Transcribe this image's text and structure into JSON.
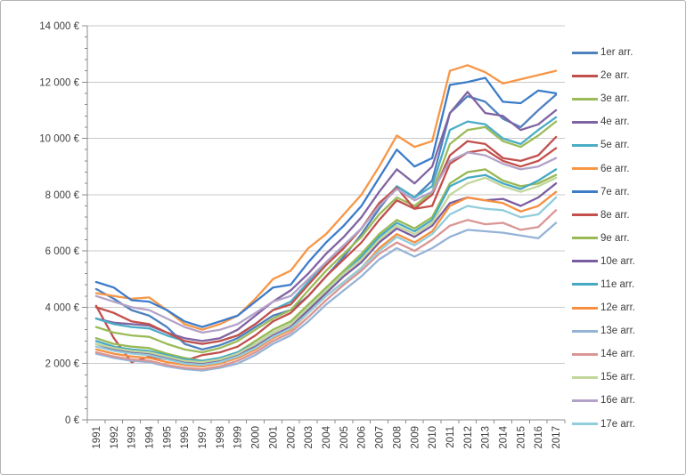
{
  "chart_data": {
    "type": "line",
    "title": "",
    "xlabel": "",
    "ylabel": "",
    "grid": true,
    "legend_position": "right",
    "x_tick_labels": [
      "1991",
      "1992",
      "1993",
      "1994",
      "1995",
      "1996",
      "1997",
      "1998",
      "1999",
      "2000",
      "2001",
      "2002",
      "2003",
      "2004",
      "2005",
      "2006",
      "2007",
      "2008",
      "2009",
      "2010",
      "2011",
      "2012",
      "2013",
      "2014",
      "2015",
      "2016",
      "2017"
    ],
    "y_axis": {
      "min": 0,
      "max": 14000,
      "major_step": 2000,
      "minor_step": 400,
      "tick_labels": [
        "0 €",
        "2 000 €",
        "4 000 €",
        "6 000 €",
        "8 000 €",
        "10 000 €",
        "12 000 €",
        "14 000 €"
      ]
    },
    "series": [
      {
        "name": "1er arr.",
        "color": "#4F81BD",
        "values": [
          4650,
          4300,
          3900,
          3700,
          3300,
          2700,
          2500,
          2650,
          2900,
          3300,
          3700,
          3900,
          4400,
          5100,
          5800,
          6600,
          7500,
          8300,
          7900,
          8500,
          10900,
          11500,
          11300,
          10700,
          10400,
          11000,
          11550
        ]
      },
      {
        "name": "2e arr.",
        "color": "#C0504D",
        "values": [
          4050,
          2900,
          2050,
          2250,
          2150,
          2100,
          2300,
          2400,
          2600,
          3000,
          3500,
          3800,
          4400,
          5100,
          5700,
          6300,
          7100,
          7800,
          7500,
          8000,
          9400,
          9900,
          9800,
          9300,
          9200,
          9400,
          10050
        ]
      },
      {
        "name": "3e arr.",
        "color": "#9BBB59",
        "values": [
          3300,
          3100,
          3000,
          2950,
          2700,
          2500,
          2400,
          2550,
          2800,
          3200,
          3600,
          3900,
          4600,
          5300,
          5900,
          6500,
          7300,
          7900,
          7600,
          8100,
          9800,
          10300,
          10400,
          9900,
          9700,
          10100,
          10600
        ]
      },
      {
        "name": "4e arr.",
        "color": "#8064A2",
        "values": [
          3600,
          3450,
          3400,
          3350,
          3100,
          2900,
          2800,
          2900,
          3200,
          3700,
          4200,
          4600,
          5200,
          5900,
          6500,
          7200,
          8100,
          8900,
          8400,
          9000,
          10900,
          11650,
          10900,
          10800,
          10300,
          10500,
          11000
        ]
      },
      {
        "name": "5e arr.",
        "color": "#4BACC6",
        "values": [
          3600,
          3400,
          3300,
          3250,
          3000,
          2800,
          2700,
          2800,
          3000,
          3400,
          3900,
          4200,
          4900,
          5600,
          6200,
          6800,
          7600,
          8300,
          7900,
          8300,
          10300,
          10600,
          10500,
          10000,
          9800,
          10300,
          10750
        ]
      },
      {
        "name": "6e arr.",
        "color": "#F79646",
        "values": [
          4500,
          4400,
          4300,
          4350,
          3900,
          3400,
          3200,
          3400,
          3700,
          4300,
          5000,
          5300,
          6100,
          6600,
          7300,
          8000,
          9000,
          10100,
          9700,
          9900,
          12400,
          12600,
          12350,
          11950,
          12100,
          12250,
          12400
        ]
      },
      {
        "name": "7e arr.",
        "color": "#3D7CC9",
        "values": [
          4900,
          4700,
          4250,
          4200,
          3900,
          3500,
          3300,
          3500,
          3700,
          4200,
          4700,
          4800,
          5600,
          6300,
          6900,
          7600,
          8600,
          9600,
          9000,
          9300,
          11900,
          12000,
          12150,
          11300,
          11250,
          11700,
          11600
        ]
      },
      {
        "name": "8e arr.",
        "color": "#C4504B",
        "values": [
          4000,
          3800,
          3500,
          3400,
          3100,
          2800,
          2700,
          2800,
          3000,
          3400,
          3900,
          4100,
          4800,
          5500,
          6100,
          6800,
          7700,
          8250,
          7500,
          7600,
          9100,
          9500,
          9600,
          9200,
          9000,
          9200,
          9650
        ]
      },
      {
        "name": "9e arr.",
        "color": "#98B954",
        "values": [
          2900,
          2700,
          2600,
          2550,
          2350,
          2200,
          2100,
          2200,
          2400,
          2800,
          3200,
          3500,
          4100,
          4700,
          5300,
          5900,
          6600,
          7100,
          6800,
          7200,
          8400,
          8800,
          8900,
          8500,
          8300,
          8400,
          8700
        ]
      },
      {
        "name": "10e arr.",
        "color": "#7A5DA0",
        "values": [
          2700,
          2500,
          2400,
          2350,
          2200,
          2050,
          2000,
          2100,
          2300,
          2600,
          3000,
          3300,
          3900,
          4500,
          5100,
          5600,
          6300,
          6800,
          6500,
          6900,
          7700,
          7900,
          7800,
          7850,
          7600,
          7900,
          8400
        ]
      },
      {
        "name": "11e arr.",
        "color": "#45A9C4",
        "values": [
          2800,
          2600,
          2500,
          2450,
          2300,
          2150,
          2100,
          2200,
          2400,
          2700,
          3100,
          3400,
          4000,
          4600,
          5200,
          5800,
          6500,
          7000,
          6700,
          7100,
          8300,
          8600,
          8700,
          8400,
          8200,
          8500,
          8900
        ]
      },
      {
        "name": "12e arr.",
        "color": "#F78F40",
        "values": [
          2500,
          2350,
          2250,
          2200,
          2050,
          1950,
          1900,
          2000,
          2200,
          2500,
          2900,
          3200,
          3800,
          4400,
          4900,
          5400,
          6100,
          6600,
          6300,
          6700,
          7600,
          7900,
          7800,
          7700,
          7400,
          7600,
          8100
        ]
      },
      {
        "name": "13e arr.",
        "color": "#95B3D7",
        "values": [
          2350,
          2200,
          2100,
          2050,
          1900,
          1800,
          1750,
          1850,
          2000,
          2300,
          2700,
          3000,
          3500,
          4100,
          4600,
          5100,
          5700,
          6100,
          5800,
          6100,
          6500,
          6750,
          6700,
          6650,
          6550,
          6450,
          7000
        ]
      },
      {
        "name": "14e arr.",
        "color": "#D99694",
        "values": [
          2400,
          2250,
          2150,
          2100,
          1950,
          1850,
          1800,
          1900,
          2100,
          2400,
          2800,
          3100,
          3650,
          4250,
          4800,
          5300,
          5900,
          6300,
          6000,
          6400,
          6900,
          7100,
          6950,
          7000,
          6750,
          6850,
          7450
        ]
      },
      {
        "name": "15e arr.",
        "color": "#C3D69B",
        "values": [
          2700,
          2550,
          2450,
          2400,
          2250,
          2100,
          2050,
          2150,
          2350,
          2700,
          3100,
          3400,
          4000,
          4600,
          5200,
          5700,
          6400,
          6900,
          6600,
          7000,
          8000,
          8400,
          8600,
          8300,
          8100,
          8300,
          8600
        ]
      },
      {
        "name": "16e arr.",
        "color": "#B3A2C7",
        "values": [
          4400,
          4200,
          4000,
          3900,
          3600,
          3300,
          3100,
          3200,
          3400,
          3800,
          4200,
          4400,
          5000,
          5600,
          6200,
          6800,
          7600,
          8200,
          7800,
          8100,
          9200,
          9500,
          9400,
          9100,
          8900,
          9000,
          9300
        ]
      },
      {
        "name": "17e arr.",
        "color": "#92CDDC",
        "values": [
          2600,
          2450,
          2350,
          2300,
          2150,
          2000,
          1950,
          2050,
          2250,
          2550,
          2950,
          3250,
          3800,
          4400,
          4900,
          5400,
          6000,
          6500,
          6200,
          6600,
          7300,
          7600,
          7500,
          7450,
          7200,
          7300,
          7900
        ]
      }
    ]
  },
  "colors": {
    "gridline": "#c9c9c9",
    "axis": "#8c8c8c",
    "tick_text": "#3f3f3f",
    "background": "#ffffff"
  }
}
